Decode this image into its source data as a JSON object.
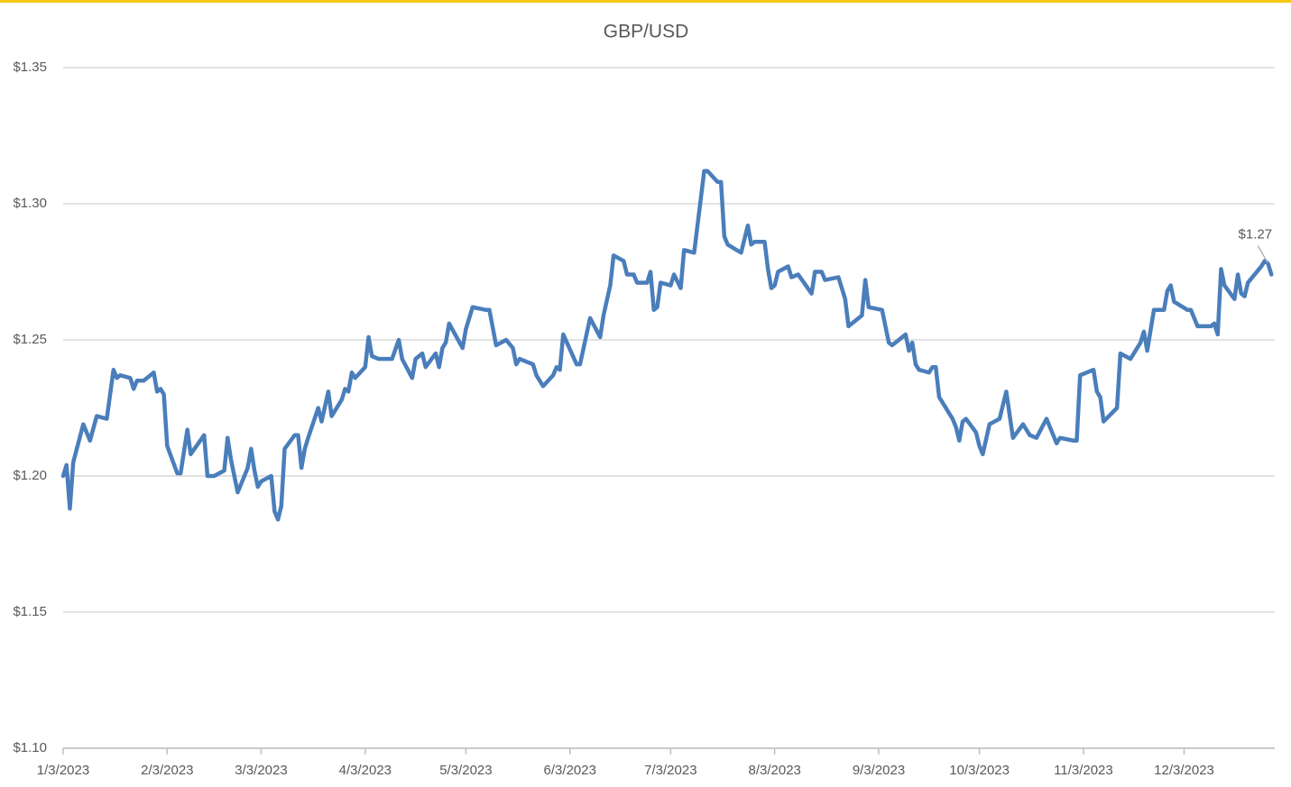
{
  "chart_data": {
    "type": "line",
    "title": "GBP/USD",
    "x": [
      "2023-01-03",
      "2023-01-04",
      "2023-01-05",
      "2023-01-06",
      "2023-01-09",
      "2023-01-11",
      "2023-01-13",
      "2023-01-16",
      "2023-01-18",
      "2023-01-19",
      "2023-01-20",
      "2023-01-23",
      "2023-01-24",
      "2023-01-25",
      "2023-01-27",
      "2023-01-30",
      "2023-01-31",
      "2023-02-01",
      "2023-02-02",
      "2023-02-03",
      "2023-02-06",
      "2023-02-07",
      "2023-02-09",
      "2023-02-10",
      "2023-02-14",
      "2023-02-15",
      "2023-02-16",
      "2023-02-17",
      "2023-02-20",
      "2023-02-21",
      "2023-02-22",
      "2023-02-24",
      "2023-02-27",
      "2023-02-28",
      "2023-03-01",
      "2023-03-02",
      "2023-03-03",
      "2023-03-06",
      "2023-03-07",
      "2023-03-08",
      "2023-03-09",
      "2023-03-10",
      "2023-03-13",
      "2023-03-14",
      "2023-03-15",
      "2023-03-16",
      "2023-03-17",
      "2023-03-20",
      "2023-03-21",
      "2023-03-23",
      "2023-03-24",
      "2023-03-27",
      "2023-03-28",
      "2023-03-29",
      "2023-03-30",
      "2023-03-31",
      "2023-04-03",
      "2023-04-04",
      "2023-04-05",
      "2023-04-07",
      "2023-04-11",
      "2023-04-13",
      "2023-04-14",
      "2023-04-17",
      "2023-04-18",
      "2023-04-20",
      "2023-04-21",
      "2023-04-24",
      "2023-04-25",
      "2023-04-26",
      "2023-04-27",
      "2023-04-28",
      "2023-05-02",
      "2023-05-03",
      "2023-05-05",
      "2023-05-09",
      "2023-05-10",
      "2023-05-12",
      "2023-05-15",
      "2023-05-17",
      "2023-05-18",
      "2023-05-19",
      "2023-05-23",
      "2023-05-24",
      "2023-05-26",
      "2023-05-29",
      "2023-05-30",
      "2023-05-31",
      "2023-06-01",
      "2023-06-05",
      "2023-06-06",
      "2023-06-09",
      "2023-06-12",
      "2023-06-13",
      "2023-06-15",
      "2023-06-16",
      "2023-06-19",
      "2023-06-20",
      "2023-06-22",
      "2023-06-23",
      "2023-06-26",
      "2023-06-27",
      "2023-06-28",
      "2023-06-29",
      "2023-06-30",
      "2023-07-03",
      "2023-07-04",
      "2023-07-06",
      "2023-07-07",
      "2023-07-10",
      "2023-07-13",
      "2023-07-14",
      "2023-07-17",
      "2023-07-18",
      "2023-07-19",
      "2023-07-20",
      "2023-07-24",
      "2023-07-26",
      "2023-07-27",
      "2023-07-28",
      "2023-07-31",
      "2023-08-01",
      "2023-08-02",
      "2023-08-03",
      "2023-08-04",
      "2023-08-07",
      "2023-08-08",
      "2023-08-10",
      "2023-08-14",
      "2023-08-15",
      "2023-08-17",
      "2023-08-18",
      "2023-08-22",
      "2023-08-24",
      "2023-08-25",
      "2023-08-29",
      "2023-08-30",
      "2023-08-31",
      "2023-09-04",
      "2023-09-06",
      "2023-09-07",
      "2023-09-11",
      "2023-09-12",
      "2023-09-13",
      "2023-09-14",
      "2023-09-15",
      "2023-09-18",
      "2023-09-19",
      "2023-09-20",
      "2023-09-21",
      "2023-09-25",
      "2023-09-26",
      "2023-09-27",
      "2023-09-28",
      "2023-09-29",
      "2023-10-02",
      "2023-10-03",
      "2023-10-04",
      "2023-10-06",
      "2023-10-09",
      "2023-10-11",
      "2023-10-13",
      "2023-10-16",
      "2023-10-18",
      "2023-10-20",
      "2023-10-23",
      "2023-10-26",
      "2023-10-27",
      "2023-10-31",
      "2023-11-01",
      "2023-11-02",
      "2023-11-06",
      "2023-11-07",
      "2023-11-08",
      "2023-11-09",
      "2023-11-13",
      "2023-11-14",
      "2023-11-17",
      "2023-11-20",
      "2023-11-21",
      "2023-11-22",
      "2023-11-24",
      "2023-11-27",
      "2023-11-28",
      "2023-11-29",
      "2023-11-30",
      "2023-12-04",
      "2023-12-05",
      "2023-12-07",
      "2023-12-11",
      "2023-12-12",
      "2023-12-13",
      "2023-12-14",
      "2023-12-15",
      "2023-12-18",
      "2023-12-19",
      "2023-12-20",
      "2023-12-21",
      "2023-12-22",
      "2023-12-26",
      "2023-12-27",
      "2023-12-28",
      "2023-12-29"
    ],
    "series": [
      {
        "color": "#4a7ebb",
        "values": [
          1.2,
          1.204,
          1.188,
          1.205,
          1.219,
          1.213,
          1.222,
          1.221,
          1.239,
          1.236,
          1.237,
          1.236,
          1.232,
          1.235,
          1.235,
          1.238,
          1.231,
          1.232,
          1.23,
          1.211,
          1.201,
          1.201,
          1.217,
          1.208,
          1.215,
          1.2,
          1.2,
          1.2,
          1.202,
          1.214,
          1.206,
          1.194,
          1.203,
          1.21,
          1.202,
          1.196,
          1.198,
          1.2,
          1.187,
          1.184,
          1.189,
          1.21,
          1.215,
          1.215,
          1.203,
          1.21,
          1.214,
          1.225,
          1.22,
          1.231,
          1.222,
          1.228,
          1.232,
          1.231,
          1.238,
          1.236,
          1.24,
          1.251,
          1.244,
          1.243,
          1.243,
          1.25,
          1.243,
          1.236,
          1.243,
          1.245,
          1.24,
          1.245,
          1.24,
          1.247,
          1.249,
          1.256,
          1.247,
          1.254,
          1.262,
          1.261,
          1.261,
          1.248,
          1.25,
          1.247,
          1.241,
          1.243,
          1.241,
          1.237,
          1.233,
          1.237,
          1.24,
          1.239,
          1.252,
          1.241,
          1.241,
          1.258,
          1.251,
          1.259,
          1.27,
          1.281,
          1.279,
          1.274,
          1.274,
          1.271,
          1.271,
          1.275,
          1.261,
          1.262,
          1.271,
          1.27,
          1.274,
          1.269,
          1.283,
          1.282,
          1.312,
          1.312,
          1.308,
          1.308,
          1.288,
          1.285,
          1.282,
          1.292,
          1.285,
          1.286,
          1.286,
          1.276,
          1.269,
          1.27,
          1.275,
          1.277,
          1.273,
          1.274,
          1.267,
          1.275,
          1.275,
          1.272,
          1.273,
          1.265,
          1.255,
          1.259,
          1.272,
          1.262,
          1.261,
          1.249,
          1.248,
          1.252,
          1.246,
          1.249,
          1.241,
          1.239,
          1.238,
          1.24,
          1.24,
          1.229,
          1.221,
          1.218,
          1.213,
          1.22,
          1.221,
          1.216,
          1.211,
          1.208,
          1.219,
          1.221,
          1.231,
          1.214,
          1.219,
          1.215,
          1.214,
          1.221,
          1.212,
          1.214,
          1.213,
          1.213,
          1.237,
          1.239,
          1.231,
          1.229,
          1.22,
          1.225,
          1.245,
          1.243,
          1.249,
          1.253,
          1.246,
          1.261,
          1.261,
          1.268,
          1.27,
          1.264,
          1.261,
          1.261,
          1.255,
          1.255,
          1.256,
          1.252,
          1.276,
          1.27,
          1.265,
          1.274,
          1.267,
          1.266,
          1.271,
          1.277,
          1.279,
          1.278,
          1.274
        ],
        "value_labels": [
          null,
          null,
          null,
          null,
          null,
          null,
          null,
          null,
          null,
          null,
          null,
          null,
          null,
          null,
          null,
          null,
          null,
          null,
          null,
          null,
          null,
          null,
          null,
          null,
          null,
          null,
          null,
          null,
          null,
          null,
          null,
          null,
          null,
          null,
          null,
          null,
          null,
          null,
          null,
          null,
          null,
          null,
          null,
          null,
          null,
          null,
          null,
          null,
          null,
          null,
          null,
          null,
          null,
          null,
          null,
          null,
          null,
          null,
          null,
          null,
          null,
          null,
          null,
          null,
          null,
          null,
          null,
          null,
          null,
          null,
          null,
          null,
          null,
          null,
          null,
          null,
          null,
          null,
          null,
          null,
          null,
          null,
          null,
          null,
          null,
          null,
          null,
          null,
          null,
          null,
          null,
          null,
          null,
          null,
          null,
          null,
          null,
          null,
          null,
          null,
          null,
          null,
          null,
          null,
          null,
          null,
          null,
          null,
          null,
          null,
          null,
          null,
          null,
          null,
          null,
          null,
          null,
          null,
          null,
          null,
          null,
          null,
          null,
          null,
          null,
          null,
          null,
          null,
          null,
          null,
          null,
          null,
          null,
          null,
          null,
          null,
          null,
          null,
          null,
          null,
          null,
          null,
          null,
          null,
          null,
          null,
          null,
          null,
          null,
          null,
          null,
          null,
          null,
          null,
          null,
          null,
          null,
          null,
          null,
          null,
          null,
          null,
          null,
          null,
          null,
          null,
          null,
          null,
          null,
          null,
          null,
          null,
          null,
          null,
          null,
          null,
          null,
          null,
          null,
          null,
          null,
          null,
          null,
          null,
          null,
          null,
          null,
          null,
          null,
          null,
          null,
          null,
          null,
          null,
          null,
          null,
          null,
          null,
          null,
          null,
          null,
          null,
          "$1.27"
        ]
      }
    ],
    "xlim": [
      "2023-01-03",
      "2023-12-30"
    ],
    "xticks": [
      {
        "value": "2023-01-03",
        "label": "1/3/2023"
      },
      {
        "value": "2023-02-03",
        "label": "2/3/2023"
      },
      {
        "value": "2023-03-03",
        "label": "3/3/2023"
      },
      {
        "value": "2023-04-03",
        "label": "4/3/2023"
      },
      {
        "value": "2023-05-03",
        "label": "5/3/2023"
      },
      {
        "value": "2023-06-03",
        "label": "6/3/2023"
      },
      {
        "value": "2023-07-03",
        "label": "7/3/2023"
      },
      {
        "value": "2023-08-03",
        "label": "8/3/2023"
      },
      {
        "value": "2023-09-03",
        "label": "9/3/2023"
      },
      {
        "value": "2023-10-03",
        "label": "10/3/2023"
      },
      {
        "value": "2023-11-03",
        "label": "11/3/2023"
      },
      {
        "value": "2023-12-03",
        "label": "12/3/2023"
      }
    ],
    "ylim": [
      1.1,
      1.35
    ],
    "yticks": [
      {
        "value": 1.1,
        "label": "$1.10"
      },
      {
        "value": 1.15,
        "label": "$1.15"
      },
      {
        "value": 1.2,
        "label": "$1.20"
      },
      {
        "value": 1.25,
        "label": "$1.25"
      },
      {
        "value": 1.3,
        "label": "$1.30"
      },
      {
        "value": 1.35,
        "label": "$1.35"
      }
    ],
    "grid": true
  }
}
